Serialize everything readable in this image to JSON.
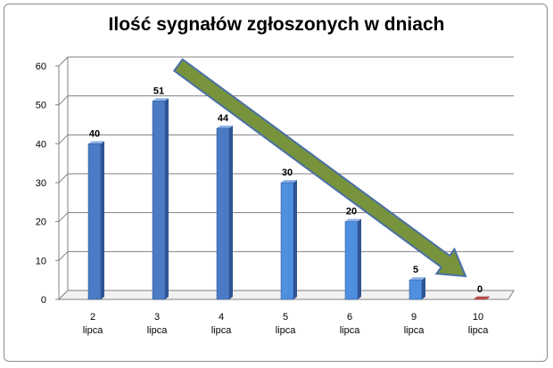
{
  "chart_data": {
    "type": "bar",
    "title": "Ilość sygnałów zgłoszonych w dniach",
    "categories": [
      [
        "2",
        "lipca"
      ],
      [
        "3",
        "lipca"
      ],
      [
        "4",
        "lipca"
      ],
      [
        "5",
        "lipca"
      ],
      [
        "6",
        "lipca"
      ],
      [
        "9",
        "lipca"
      ],
      [
        "10",
        "lipca"
      ]
    ],
    "values": [
      40,
      51,
      44,
      30,
      20,
      5,
      0
    ],
    "ylim": [
      0,
      60
    ],
    "yticks": [
      0,
      10,
      20,
      30,
      40,
      50,
      60
    ],
    "grid": true,
    "xlabel": "",
    "ylabel": "",
    "colors": {
      "bar_front_dark": "#4a7bc4",
      "bar_front_light": "#4f8fe0",
      "bar_zero": "#c0504d",
      "grid": "#808080",
      "arrow_fill": "#77933c",
      "arrow_stroke": "#4a6fa5"
    },
    "annotation": "trend-arrow-down"
  }
}
